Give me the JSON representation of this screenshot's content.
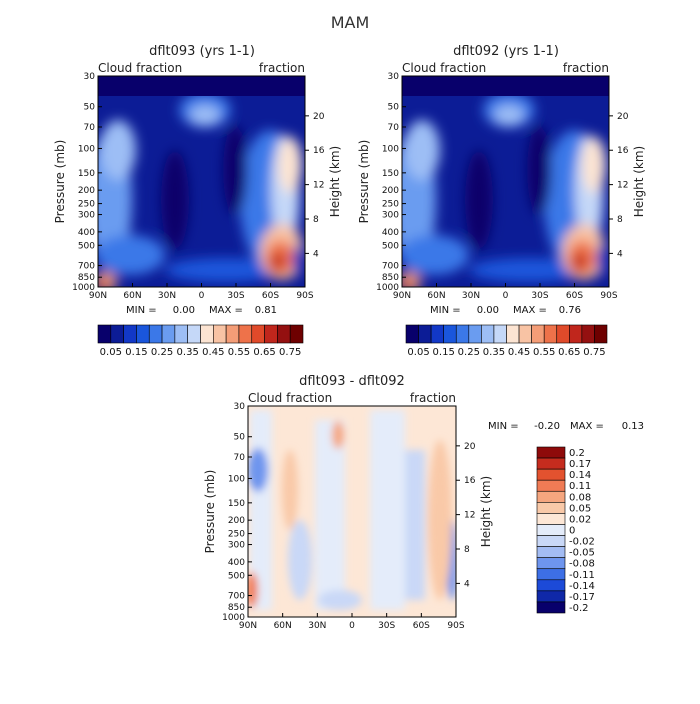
{
  "title": "MAM",
  "colors": {
    "colorbar": [
      "#08006b",
      "#0c1c96",
      "#1238c7",
      "#1a56dc",
      "#3b78e8",
      "#6a9cf0",
      "#9dbef5",
      "#c5d8f8",
      "#fce4d2",
      "#f8c3a4",
      "#f49d77",
      "#ee724a",
      "#e04a2a",
      "#c0261c",
      "#941010",
      "#6e0000"
    ],
    "diff_colorbar": [
      "#08006b",
      "#0f28a8",
      "#1c4ad8",
      "#3d6fe6",
      "#6e95ee",
      "#a3bcf3",
      "#c9d8f7",
      "#e4ecfa",
      "#fde7d6",
      "#f9c9a8",
      "#f5a67f",
      "#f07b55",
      "#e3522f",
      "#c52c1e",
      "#8e0a0a"
    ]
  },
  "chart_data": [
    {
      "type": "heatmap",
      "title": "dflt093 (yrs 1-1)",
      "left_label": "Cloud fraction",
      "right_label": "fraction",
      "xlabel": "",
      "ylabel": "Pressure (mb)",
      "y2label": "Height (km)",
      "x_ticks": [
        "90N",
        "60N",
        "30N",
        "0",
        "30S",
        "60S",
        "90S"
      ],
      "y_ticks": [
        "1000",
        "850",
        "700",
        "500",
        "400",
        "300",
        "250",
        "200",
        "150",
        "100",
        "70",
        "50",
        "30"
      ],
      "y2_ticks": [
        "4",
        "8",
        "12",
        "16",
        "20"
      ],
      "stats": {
        "min_label": "MIN =",
        "min": "0.00",
        "max_label": "MAX =",
        "max": "0.81"
      },
      "colorbar_ticks": [
        "0.05",
        "0.15",
        "0.25",
        "0.35",
        "0.45",
        "0.55",
        "0.65",
        "0.75"
      ]
    },
    {
      "type": "heatmap",
      "title": "dflt092 (yrs 1-1)",
      "left_label": "Cloud fraction",
      "right_label": "fraction",
      "xlabel": "",
      "ylabel": "Pressure (mb)",
      "y2label": "Height (km)",
      "x_ticks": [
        "90N",
        "60N",
        "30N",
        "0",
        "30S",
        "60S",
        "90S"
      ],
      "y_ticks": [
        "1000",
        "850",
        "700",
        "500",
        "400",
        "300",
        "250",
        "200",
        "150",
        "100",
        "70",
        "50",
        "30"
      ],
      "y2_ticks": [
        "4",
        "8",
        "12",
        "16",
        "20"
      ],
      "stats": {
        "min_label": "MIN =",
        "min": "0.00",
        "max_label": "MAX =",
        "max": "0.76"
      },
      "colorbar_ticks": [
        "0.05",
        "0.15",
        "0.25",
        "0.35",
        "0.45",
        "0.55",
        "0.65",
        "0.75"
      ]
    },
    {
      "type": "heatmap",
      "title": "dflt093 - dflt092",
      "left_label": "Cloud fraction",
      "right_label": "fraction",
      "xlabel": "",
      "ylabel": "Pressure (mb)",
      "y2label": "Height (km)",
      "x_ticks": [
        "90N",
        "60N",
        "30N",
        "0",
        "30S",
        "60S",
        "90S"
      ],
      "y_ticks": [
        "1000",
        "850",
        "700",
        "500",
        "400",
        "300",
        "250",
        "200",
        "150",
        "100",
        "70",
        "50",
        "30"
      ],
      "y2_ticks": [
        "4",
        "8",
        "12",
        "16",
        "20"
      ],
      "stats": {
        "min_label": "MIN =",
        "min": "-0.20",
        "max_label": "MAX =",
        "max": "0.13"
      },
      "colorbar_ticks": [
        "0.2",
        "0.17",
        "0.14",
        "0.11",
        "0.08",
        "0.05",
        "0.02",
        "0",
        "-0.02",
        "-0.05",
        "-0.08",
        "-0.11",
        "-0.14",
        "-0.17",
        "-0.2"
      ]
    }
  ]
}
